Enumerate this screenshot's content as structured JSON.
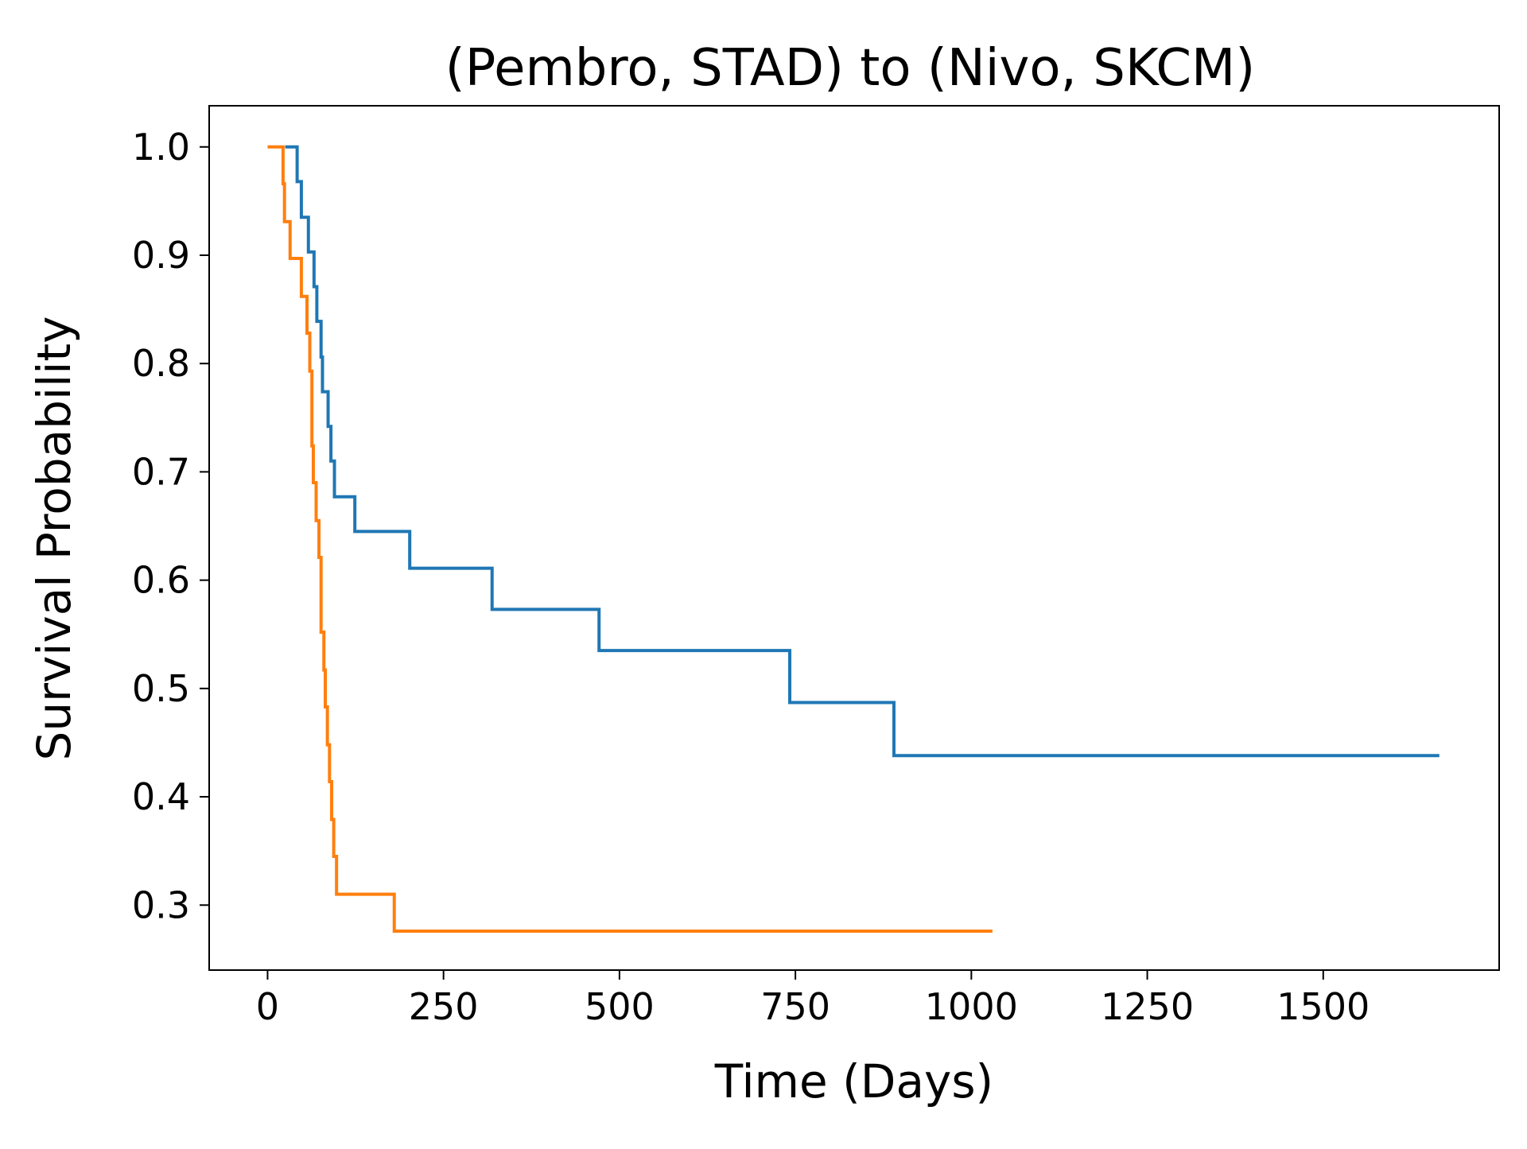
{
  "chart_data": {
    "type": "line",
    "step": true,
    "title": "(Pembro, STAD) to (Nivo, SKCM)",
    "xlabel": "Time (Days)",
    "ylabel": "Survival Probability",
    "xlim": [
      -83,
      1750
    ],
    "ylim": [
      0.24,
      1.038
    ],
    "xticks": [
      0,
      250,
      500,
      750,
      1000,
      1250,
      1500
    ],
    "xtick_labels": [
      "0",
      "250",
      "500",
      "750",
      "1000",
      "1250",
      "1500"
    ],
    "yticks": [
      0.3,
      0.4,
      0.5,
      0.6,
      0.7,
      0.8,
      0.9,
      1.0
    ],
    "ytick_labels": [
      "0.3",
      "0.4",
      "0.5",
      "0.6",
      "0.7",
      "0.8",
      "0.9",
      "1.0"
    ],
    "grid": false,
    "series": [
      {
        "color": "#1f77b4",
        "points": [
          [
            25,
            1.0
          ],
          [
            42,
            0.968
          ],
          [
            48,
            0.935
          ],
          [
            58,
            0.903
          ],
          [
            66,
            0.871
          ],
          [
            70,
            0.839
          ],
          [
            76,
            0.806
          ],
          [
            78,
            0.774
          ],
          [
            86,
            0.742
          ],
          [
            90,
            0.71
          ],
          [
            95,
            0.677
          ],
          [
            124,
            0.645
          ],
          [
            202,
            0.611
          ],
          [
            319,
            0.573
          ],
          [
            471,
            0.535
          ],
          [
            742,
            0.487
          ],
          [
            890,
            0.438
          ],
          [
            1665,
            0.438
          ]
        ]
      },
      {
        "color": "#ff7f0e",
        "points": [
          [
            0,
            1.0
          ],
          [
            22,
            0.966
          ],
          [
            24,
            0.931
          ],
          [
            32,
            0.897
          ],
          [
            48,
            0.862
          ],
          [
            56,
            0.828
          ],
          [
            60,
            0.793
          ],
          [
            63,
            0.724
          ],
          [
            65,
            0.69
          ],
          [
            69,
            0.655
          ],
          [
            73,
            0.621
          ],
          [
            76,
            0.552
          ],
          [
            80,
            0.517
          ],
          [
            82,
            0.483
          ],
          [
            85,
            0.448
          ],
          [
            88,
            0.414
          ],
          [
            91,
            0.379
          ],
          [
            94,
            0.345
          ],
          [
            98,
            0.31
          ],
          [
            180,
            0.276
          ],
          [
            1030,
            0.276
          ]
        ]
      }
    ]
  }
}
